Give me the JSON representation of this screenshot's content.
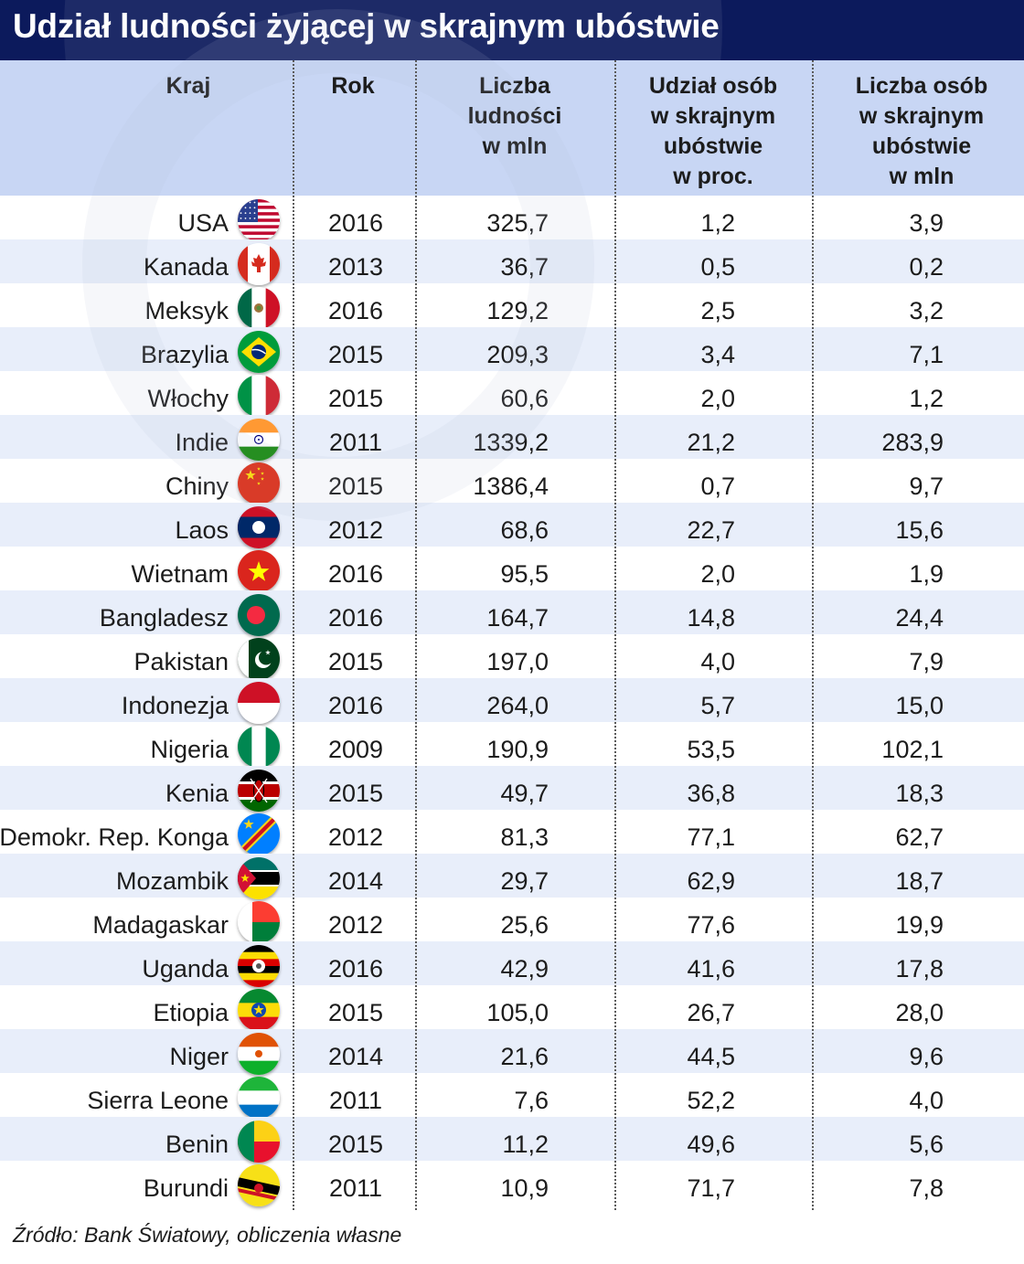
{
  "title": "Udział ludności żyjącej w skrajnym ubóstwie",
  "source": "Źródło: Bank Światowy, obliczenia własne",
  "colors": {
    "header_bg": "#0c1a5c",
    "thead_bg": "#c8d6f4",
    "row_alt": "#e8eefa"
  },
  "chart_data": {
    "type": "table",
    "columns": [
      "Kraj",
      "Rok",
      "Liczba\nludności\nw mln",
      "Udział osób\nw skrajnym\nubóstwie\nw proc.",
      "Liczba osób\nw skrajnym\nubóstwie\nw mln"
    ],
    "rows": [
      {
        "country": "USA",
        "year": "2016",
        "population": "325,7",
        "share": "1,2",
        "count": "3,9",
        "flag": "usa-flag-icon"
      },
      {
        "country": "Kanada",
        "year": "2013",
        "population": "36,7",
        "share": "0,5",
        "count": "0,2",
        "flag": "canada-flag-icon"
      },
      {
        "country": "Meksyk",
        "year": "2016",
        "population": "129,2",
        "share": "2,5",
        "count": "3,2",
        "flag": "mexico-flag-icon"
      },
      {
        "country": "Brazylia",
        "year": "2015",
        "population": "209,3",
        "share": "3,4",
        "count": "7,1",
        "flag": "brazil-flag-icon"
      },
      {
        "country": "Włochy",
        "year": "2015",
        "population": "60,6",
        "share": "2,0",
        "count": "1,2",
        "flag": "italy-flag-icon"
      },
      {
        "country": "Indie",
        "year": "2011",
        "population": "1339,2",
        "share": "21,2",
        "count": "283,9",
        "flag": "india-flag-icon"
      },
      {
        "country": "Chiny",
        "year": "2015",
        "population": "1386,4",
        "share": "0,7",
        "count": "9,7",
        "flag": "china-flag-icon"
      },
      {
        "country": "Laos",
        "year": "2012",
        "population": "68,6",
        "share": "22,7",
        "count": "15,6",
        "flag": "laos-flag-icon"
      },
      {
        "country": "Wietnam",
        "year": "2016",
        "population": "95,5",
        "share": "2,0",
        "count": "1,9",
        "flag": "vietnam-flag-icon"
      },
      {
        "country": "Bangladesz",
        "year": "2016",
        "population": "164,7",
        "share": "14,8",
        "count": "24,4",
        "flag": "bangladesh-flag-icon"
      },
      {
        "country": "Pakistan",
        "year": "2015",
        "population": "197,0",
        "share": "4,0",
        "count": "7,9",
        "flag": "pakistan-flag-icon"
      },
      {
        "country": "Indonezja",
        "year": "2016",
        "population": "264,0",
        "share": "5,7",
        "count": "15,0",
        "flag": "indonesia-flag-icon"
      },
      {
        "country": "Nigeria",
        "year": "2009",
        "population": "190,9",
        "share": "53,5",
        "count": "102,1",
        "flag": "nigeria-flag-icon"
      },
      {
        "country": "Kenia",
        "year": "2015",
        "population": "49,7",
        "share": "36,8",
        "count": "18,3",
        "flag": "kenya-flag-icon"
      },
      {
        "country": "Demokr. Rep. Konga",
        "year": "2012",
        "population": "81,3",
        "share": "77,1",
        "count": "62,7",
        "flag": "dr-congo-flag-icon"
      },
      {
        "country": "Mozambik",
        "year": "2014",
        "population": "29,7",
        "share": "62,9",
        "count": "18,7",
        "flag": "mozambique-flag-icon"
      },
      {
        "country": "Madagaskar",
        "year": "2012",
        "population": "25,6",
        "share": "77,6",
        "count": "19,9",
        "flag": "madagascar-flag-icon"
      },
      {
        "country": "Uganda",
        "year": "2016",
        "population": "42,9",
        "share": "41,6",
        "count": "17,8",
        "flag": "uganda-flag-icon"
      },
      {
        "country": "Etiopia",
        "year": "2015",
        "population": "105,0",
        "share": "26,7",
        "count": "28,0",
        "flag": "ethiopia-flag-icon"
      },
      {
        "country": "Niger",
        "year": "2014",
        "population": "21,6",
        "share": "44,5",
        "count": "9,6",
        "flag": "niger-flag-icon"
      },
      {
        "country": "Sierra Leone",
        "year": "2011",
        "population": "7,6",
        "share": "52,2",
        "count": "4,0",
        "flag": "sierra-leone-flag-icon"
      },
      {
        "country": "Benin",
        "year": "2015",
        "population": "11,2",
        "share": "49,6",
        "count": "5,6",
        "flag": "benin-flag-icon"
      },
      {
        "country": "Burundi",
        "year": "2011",
        "population": "10,9",
        "share": "71,7",
        "count": "7,8",
        "flag": "burundi-flag-icon"
      }
    ]
  }
}
